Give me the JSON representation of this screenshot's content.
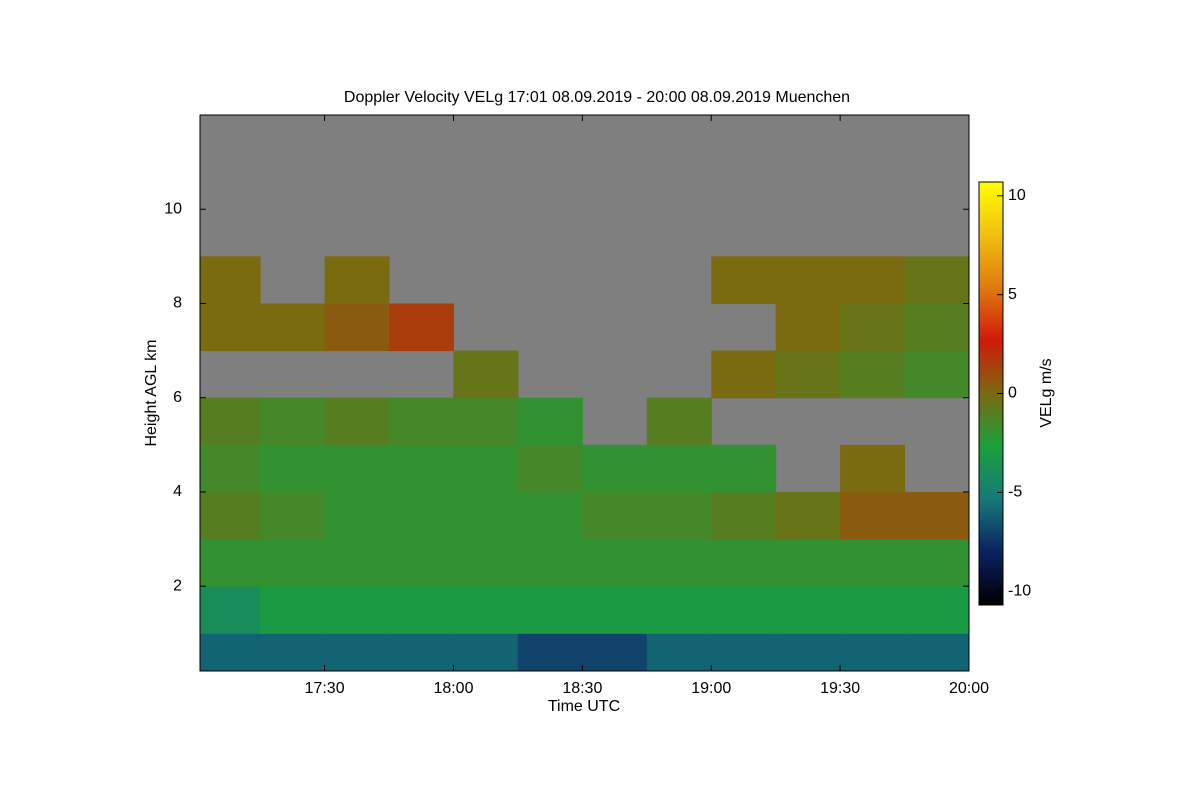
{
  "chart_data": {
    "type": "heatmap",
    "title": "Doppler Velocity VELg   17:01 08.09.2019 - 20:00 08.09.2019 Muenchen",
    "xlabel": "Time UTC",
    "ylabel": "Height AGL km",
    "colorbar_label": "VELg m/s",
    "background": "#7f7f7f",
    "xlim": [
      17.0167,
      20
    ],
    "xticks": [
      {
        "value": 17.5,
        "label": "17:30"
      },
      {
        "value": 18,
        "label": "18:00"
      },
      {
        "value": 18.5,
        "label": "18:30"
      },
      {
        "value": 19,
        "label": "19:00"
      },
      {
        "value": 19.5,
        "label": "19:30"
      },
      {
        "value": 20,
        "label": "20:00"
      }
    ],
    "ylim": [
      0.2,
      12
    ],
    "yticks": [
      2,
      4,
      6,
      8,
      10
    ],
    "clim": [
      -10.7,
      10.7
    ],
    "cticks": [
      -10,
      -5,
      0,
      5,
      10
    ],
    "colors": [
      "#000000",
      "#0b2160",
      "#167a78",
      "#1aa03c",
      "#7a6a10",
      "#d01a0a",
      "#e07a10",
      "#f0c010",
      "#ffff00"
    ],
    "x": [
      17.125,
      17.375,
      17.625,
      17.875,
      18.125,
      18.375,
      18.625,
      18.875,
      19.125,
      19.375,
      19.625,
      19.875
    ],
    "y": [
      0.5,
      1.5,
      2.5,
      3.5,
      4.5,
      5.5,
      6.5,
      7.5,
      8.5,
      9.5,
      10.5,
      11.5
    ],
    "z": [
      [
        -6,
        -6,
        -6,
        -6,
        -6,
        -7,
        -7,
        -6,
        -6,
        -6,
        -6,
        -6
      ],
      [
        -4,
        -3,
        -3,
        -3,
        -3,
        -3,
        -3,
        -3,
        -3,
        -3,
        -3,
        -3
      ],
      [
        -2,
        -2,
        -2,
        -2,
        -2,
        -2,
        -2,
        -2,
        -2,
        -2,
        -2,
        -2
      ],
      [
        -1,
        -1.5,
        -2,
        -2,
        -2,
        -2,
        -1.5,
        -1.5,
        -1,
        -0.5,
        0.5,
        0.5
      ],
      [
        -1.5,
        -2,
        -2,
        -2,
        -2,
        -1.5,
        -2,
        -2,
        -2,
        null,
        0,
        null
      ],
      [
        -1,
        -1.5,
        -1,
        -1.5,
        -1.5,
        -2,
        null,
        -1,
        null,
        null,
        null,
        null
      ],
      [
        null,
        null,
        null,
        null,
        -0.5,
        null,
        null,
        null,
        0,
        -0.5,
        -1,
        -1.5
      ],
      [
        0,
        0,
        0.5,
        1.5,
        null,
        null,
        null,
        null,
        null,
        0,
        -0.5,
        -1
      ],
      [
        0,
        null,
        0,
        null,
        null,
        null,
        null,
        null,
        0,
        0,
        0,
        -0.5
      ],
      [
        null,
        null,
        null,
        null,
        null,
        null,
        null,
        null,
        null,
        null,
        null,
        null
      ],
      [
        null,
        null,
        null,
        null,
        null,
        null,
        null,
        null,
        null,
        null,
        null,
        null
      ],
      [
        null,
        null,
        null,
        null,
        null,
        null,
        null,
        null,
        null,
        null,
        null,
        null
      ]
    ]
  }
}
